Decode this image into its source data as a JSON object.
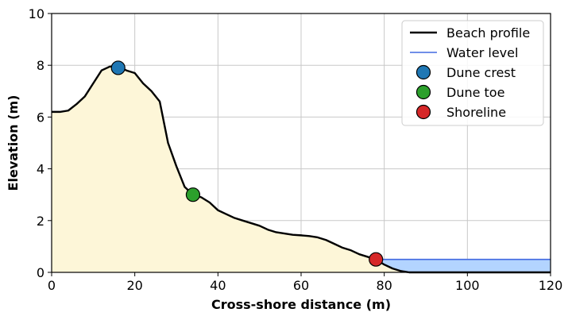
{
  "chart_data": {
    "type": "area",
    "xlabel": "Cross-shore distance (m)",
    "ylabel": "Elevation (m)",
    "xlim": [
      0,
      120
    ],
    "ylim": [
      0,
      10
    ],
    "xticks": [
      0,
      20,
      40,
      60,
      80,
      100,
      120
    ],
    "yticks": [
      0,
      2,
      4,
      6,
      8,
      10
    ],
    "grid": true,
    "legend_position": "top-right",
    "water_level": 0.5,
    "colors": {
      "profile": "#000000",
      "sand_fill": "#fdf6d8",
      "water_line": "#4169e1",
      "water_fill": "#b3d4ff",
      "dune_crest": "#1f77b4",
      "dune_toe": "#2ca02c",
      "shoreline": "#d62728",
      "grid": "#c8c8c8"
    },
    "profile": {
      "name": "Beach profile",
      "x": [
        0,
        2,
        4,
        6,
        8,
        10,
        12,
        14,
        16,
        18,
        20,
        22,
        24,
        26,
        28,
        30,
        32,
        34,
        36,
        38,
        40,
        42,
        44,
        46,
        48,
        50,
        52,
        54,
        56,
        58,
        60,
        62,
        64,
        66,
        68,
        70,
        72,
        74,
        76,
        78,
        80,
        82,
        84,
        86,
        88,
        90,
        95,
        100,
        105,
        110,
        115,
        120
      ],
      "y": [
        6.2,
        6.2,
        6.25,
        6.5,
        6.8,
        7.3,
        7.8,
        7.95,
        7.95,
        7.8,
        7.7,
        7.3,
        7.0,
        6.6,
        5.0,
        4.1,
        3.3,
        3.0,
        2.9,
        2.7,
        2.4,
        2.25,
        2.1,
        2.0,
        1.9,
        1.8,
        1.65,
        1.55,
        1.5,
        1.45,
        1.43,
        1.4,
        1.35,
        1.25,
        1.1,
        0.95,
        0.85,
        0.7,
        0.6,
        0.5,
        0.3,
        0.15,
        0.05,
        0.0,
        0.0,
        0.0,
        0.0,
        0.0,
        0.0,
        0.0,
        0.0,
        0.0
      ]
    },
    "water": {
      "name": "Water level"
    },
    "markers": [
      {
        "name": "Dune crest",
        "x": 16,
        "y": 7.9,
        "color": "#1f77b4"
      },
      {
        "name": "Dune toe",
        "x": 34,
        "y": 3.0,
        "color": "#2ca02c"
      },
      {
        "name": "Shoreline",
        "x": 78,
        "y": 0.5,
        "color": "#d62728"
      }
    ],
    "legend": [
      {
        "label": "Beach profile",
        "kind": "line",
        "color": "#000000"
      },
      {
        "label": "Water level",
        "kind": "line",
        "color": "#4169e1"
      },
      {
        "label": "Dune crest",
        "kind": "marker",
        "color": "#1f77b4"
      },
      {
        "label": "Dune toe",
        "kind": "marker",
        "color": "#2ca02c"
      },
      {
        "label": "Shoreline",
        "kind": "marker",
        "color": "#d62728"
      }
    ]
  }
}
